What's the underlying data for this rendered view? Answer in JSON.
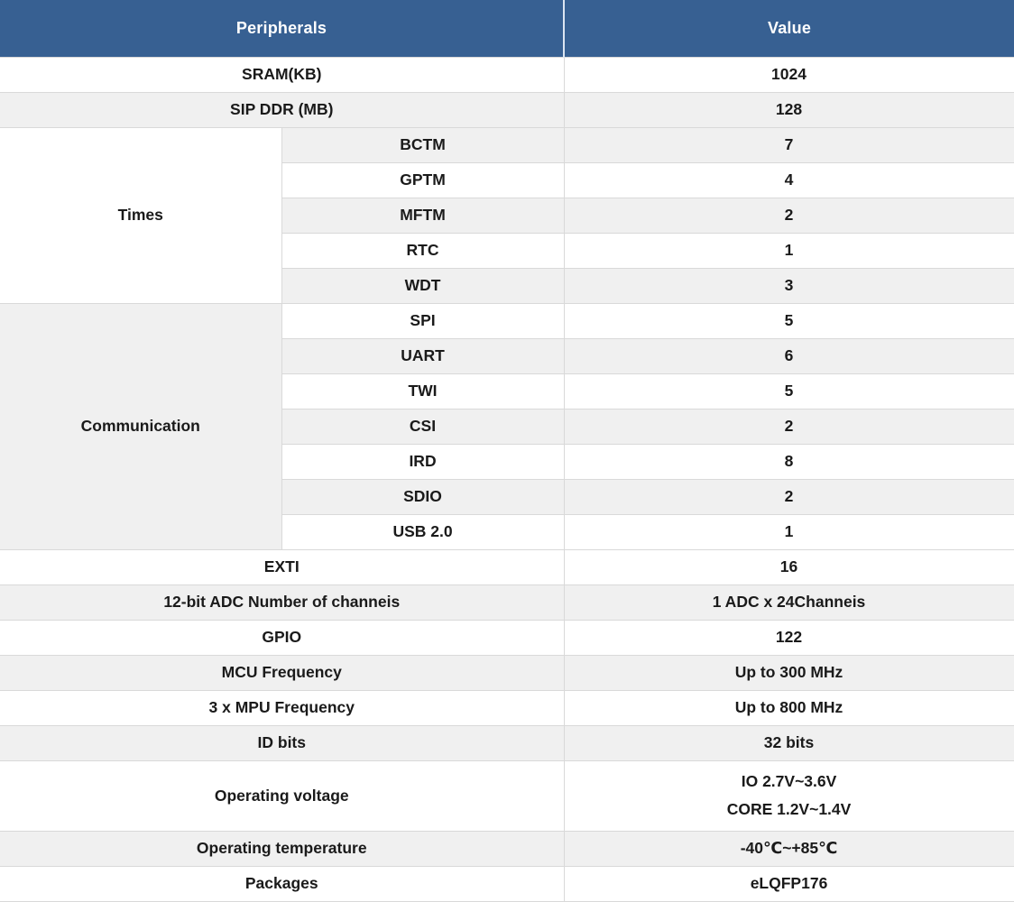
{
  "colors": {
    "header_bg": "#376092",
    "header_text": "#ffffff",
    "row_shade": "#f0f0f0",
    "row_plain": "#ffffff",
    "border": "#d9d9d9",
    "body_text": "#1a1a1a"
  },
  "table": {
    "header": {
      "peripherals": "Peripherals",
      "value": "Value"
    },
    "rows": [
      {
        "kind": "simple",
        "label": "SRAM(KB)",
        "value": "1024",
        "shade": false
      },
      {
        "kind": "simple",
        "label": "SIP DDR (MB)",
        "value": "128",
        "shade": true
      },
      {
        "kind": "group",
        "group": "Times",
        "group_shade": false,
        "items": [
          {
            "label": "BCTM",
            "value": "7",
            "shade": true
          },
          {
            "label": "GPTM",
            "value": "4",
            "shade": false
          },
          {
            "label": "MFTM",
            "value": "2",
            "shade": true
          },
          {
            "label": "RTC",
            "value": "1",
            "shade": false
          },
          {
            "label": "WDT",
            "value": "3",
            "shade": true
          }
        ]
      },
      {
        "kind": "group",
        "group": "Communication",
        "group_shade": true,
        "items": [
          {
            "label": "SPI",
            "value": "5",
            "shade": false
          },
          {
            "label": "UART",
            "value": "6",
            "shade": true
          },
          {
            "label": "TWI",
            "value": "5",
            "shade": false
          },
          {
            "label": "CSI",
            "value": "2",
            "shade": true
          },
          {
            "label": "IRD",
            "value": "8",
            "shade": false
          },
          {
            "label": "SDIO",
            "value": "2",
            "shade": true
          },
          {
            "label": "USB 2.0",
            "value": "1",
            "shade": false
          }
        ]
      },
      {
        "kind": "simple",
        "label": "EXTI",
        "value": "16",
        "shade": false
      },
      {
        "kind": "simple",
        "label": "12-bit ADC Number of channeis",
        "value": "1 ADC x 24Channeis",
        "shade": true
      },
      {
        "kind": "simple",
        "label": "GPIO",
        "value": "122",
        "shade": false
      },
      {
        "kind": "simple",
        "label": "MCU Frequency",
        "value": "Up to 300 MHz",
        "shade": true
      },
      {
        "kind": "simple",
        "label": "3 x MPU Frequency",
        "value": "Up to 800 MHz",
        "shade": false
      },
      {
        "kind": "simple",
        "label": "ID bits",
        "value": "32 bits",
        "shade": true
      },
      {
        "kind": "simple",
        "label": "Operating voltage",
        "value_lines": [
          "IO 2.7V~3.6V",
          "CORE 1.2V~1.4V"
        ],
        "shade": false,
        "tall": true
      },
      {
        "kind": "simple",
        "label": "Operating temperature",
        "value": "-40℃~+85℃",
        "shade": true
      },
      {
        "kind": "simple",
        "label": "Packages",
        "value": "eLQFP176",
        "shade": false
      }
    ]
  }
}
